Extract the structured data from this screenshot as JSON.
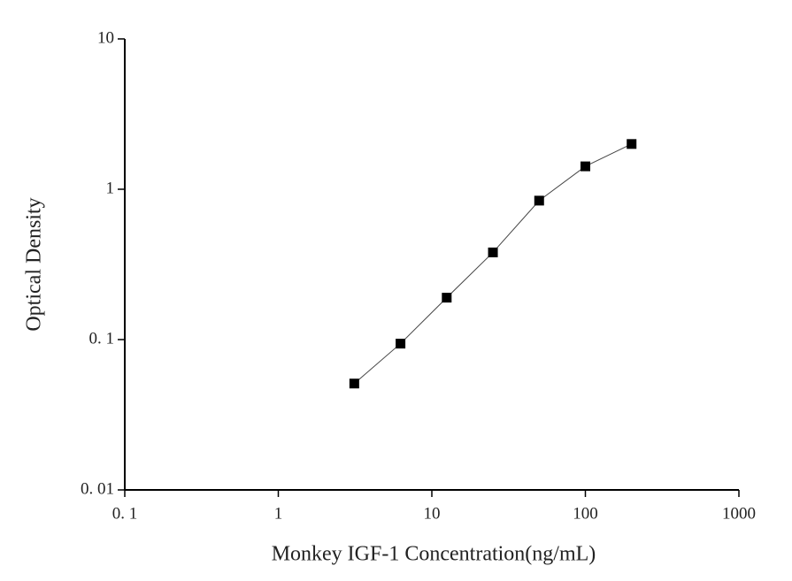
{
  "chart_data": {
    "type": "line",
    "x_label": "Monkey IGF-1 Concentration(ng/mL)",
    "y_label": "Optical Density",
    "x": [
      3.125,
      6.25,
      12.5,
      25,
      50,
      100,
      200
    ],
    "values": [
      0.051,
      0.094,
      0.19,
      0.38,
      0.84,
      1.42,
      2.0
    ],
    "color": "#000000",
    "marker": "square",
    "x_scale": "log",
    "y_scale": "log",
    "xlim": [
      0.1,
      1000
    ],
    "ylim": [
      0.01,
      10
    ],
    "xticks": [
      {
        "value": 0.1,
        "label": "0. 1"
      },
      1,
      10,
      100,
      1000
    ],
    "yticks": [
      {
        "value": 0.01,
        "label": "0. 01"
      },
      {
        "value": 0.1,
        "label": "0. 1"
      },
      1,
      10
    ],
    "grid": false
  }
}
